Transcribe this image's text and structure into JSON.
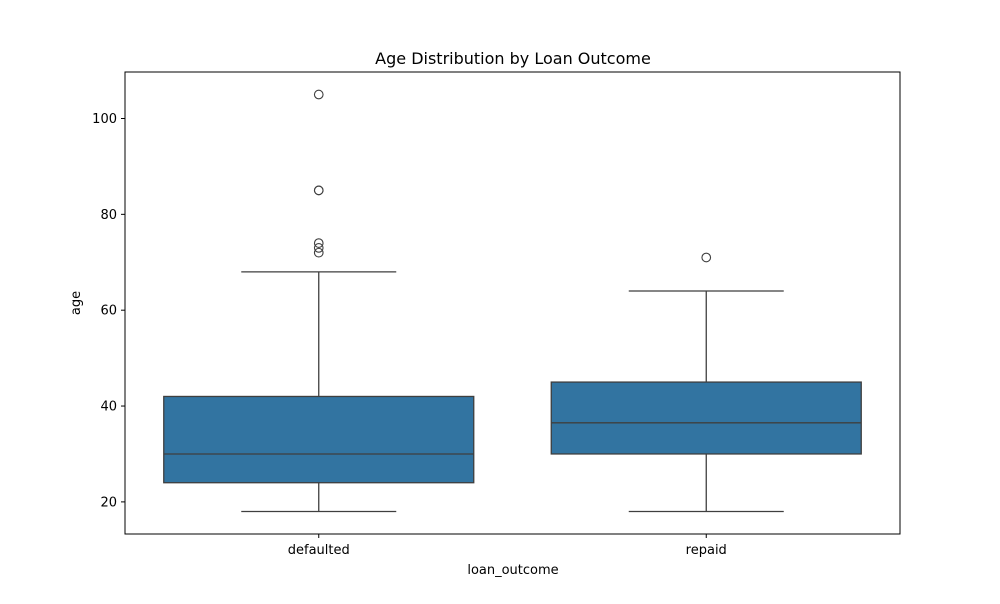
{
  "chart_data": {
    "type": "box",
    "title": "Age Distribution by Loan Outcome",
    "xlabel": "loan_outcome",
    "ylabel": "age",
    "categories": [
      "defaulted",
      "repaid"
    ],
    "ylim": [
      13.3,
      109.7
    ],
    "yticks": [
      20,
      40,
      60,
      80,
      100
    ],
    "grid": false,
    "legend": "none",
    "box_color": "#3274a1",
    "line_color": "#3f3f3f",
    "boxes": [
      {
        "category": "defaulted",
        "whisker_low": 18,
        "q1": 24,
        "median": 30,
        "q3": 42,
        "whisker_high": 68,
        "outliers": [
          72,
          73,
          74,
          85,
          85,
          105
        ]
      },
      {
        "category": "repaid",
        "whisker_low": 18,
        "q1": 30,
        "median": 36.5,
        "q3": 45,
        "whisker_high": 64,
        "outliers": [
          71
        ]
      }
    ]
  }
}
